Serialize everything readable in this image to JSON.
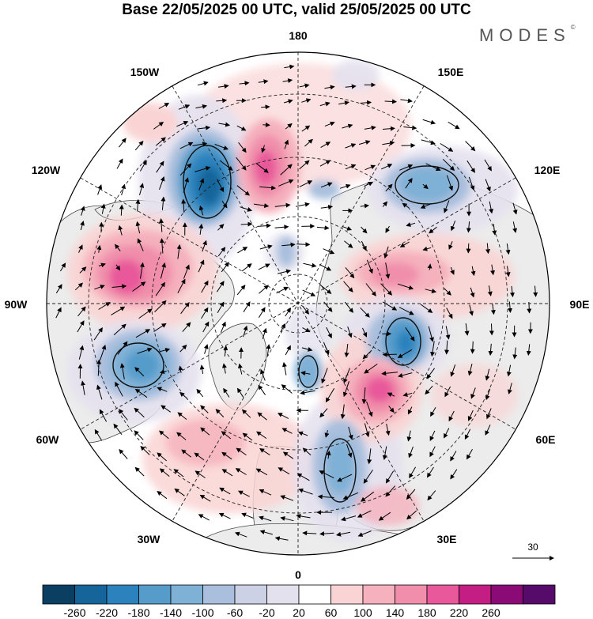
{
  "title": "Base 22/05/2025 00 UTC, valid 25/05/2025 00 UTC",
  "logo": "MODES",
  "logo_mark": "©",
  "longitude_labels": {
    "lon_180": "180",
    "lon_150E": "150E",
    "lon_120E": "120E",
    "lon_90E": "90E",
    "lon_60E": "60E",
    "lon_30E": "30E",
    "lon_0": "0",
    "lon_30W": "30W",
    "lon_60W": "60W",
    "lon_90W": "90W",
    "lon_120W": "120W",
    "lon_150W": "150W"
  },
  "reference_vector": {
    "value": "30"
  },
  "colorbar": {
    "tick_labels": [
      "-260",
      "-220",
      "-180",
      "-140",
      "-100",
      "-60",
      "-20",
      "20",
      "60",
      "100",
      "140",
      "180",
      "220",
      "260"
    ],
    "colors": [
      "#0b3f62",
      "#15659a",
      "#2b82bd",
      "#559ccb",
      "#7fb0d6",
      "#a9bfdd",
      "#cdd1e6",
      "#e4e1ee",
      "#ffffff",
      "#fad4d4",
      "#f5b1bd",
      "#f08eab",
      "#e8589a",
      "#c41d83",
      "#8b0b76",
      "#560b6a"
    ]
  },
  "colors": {
    "land": "#ececec",
    "coast": "#4a4a4a",
    "grid": "#222222"
  }
}
